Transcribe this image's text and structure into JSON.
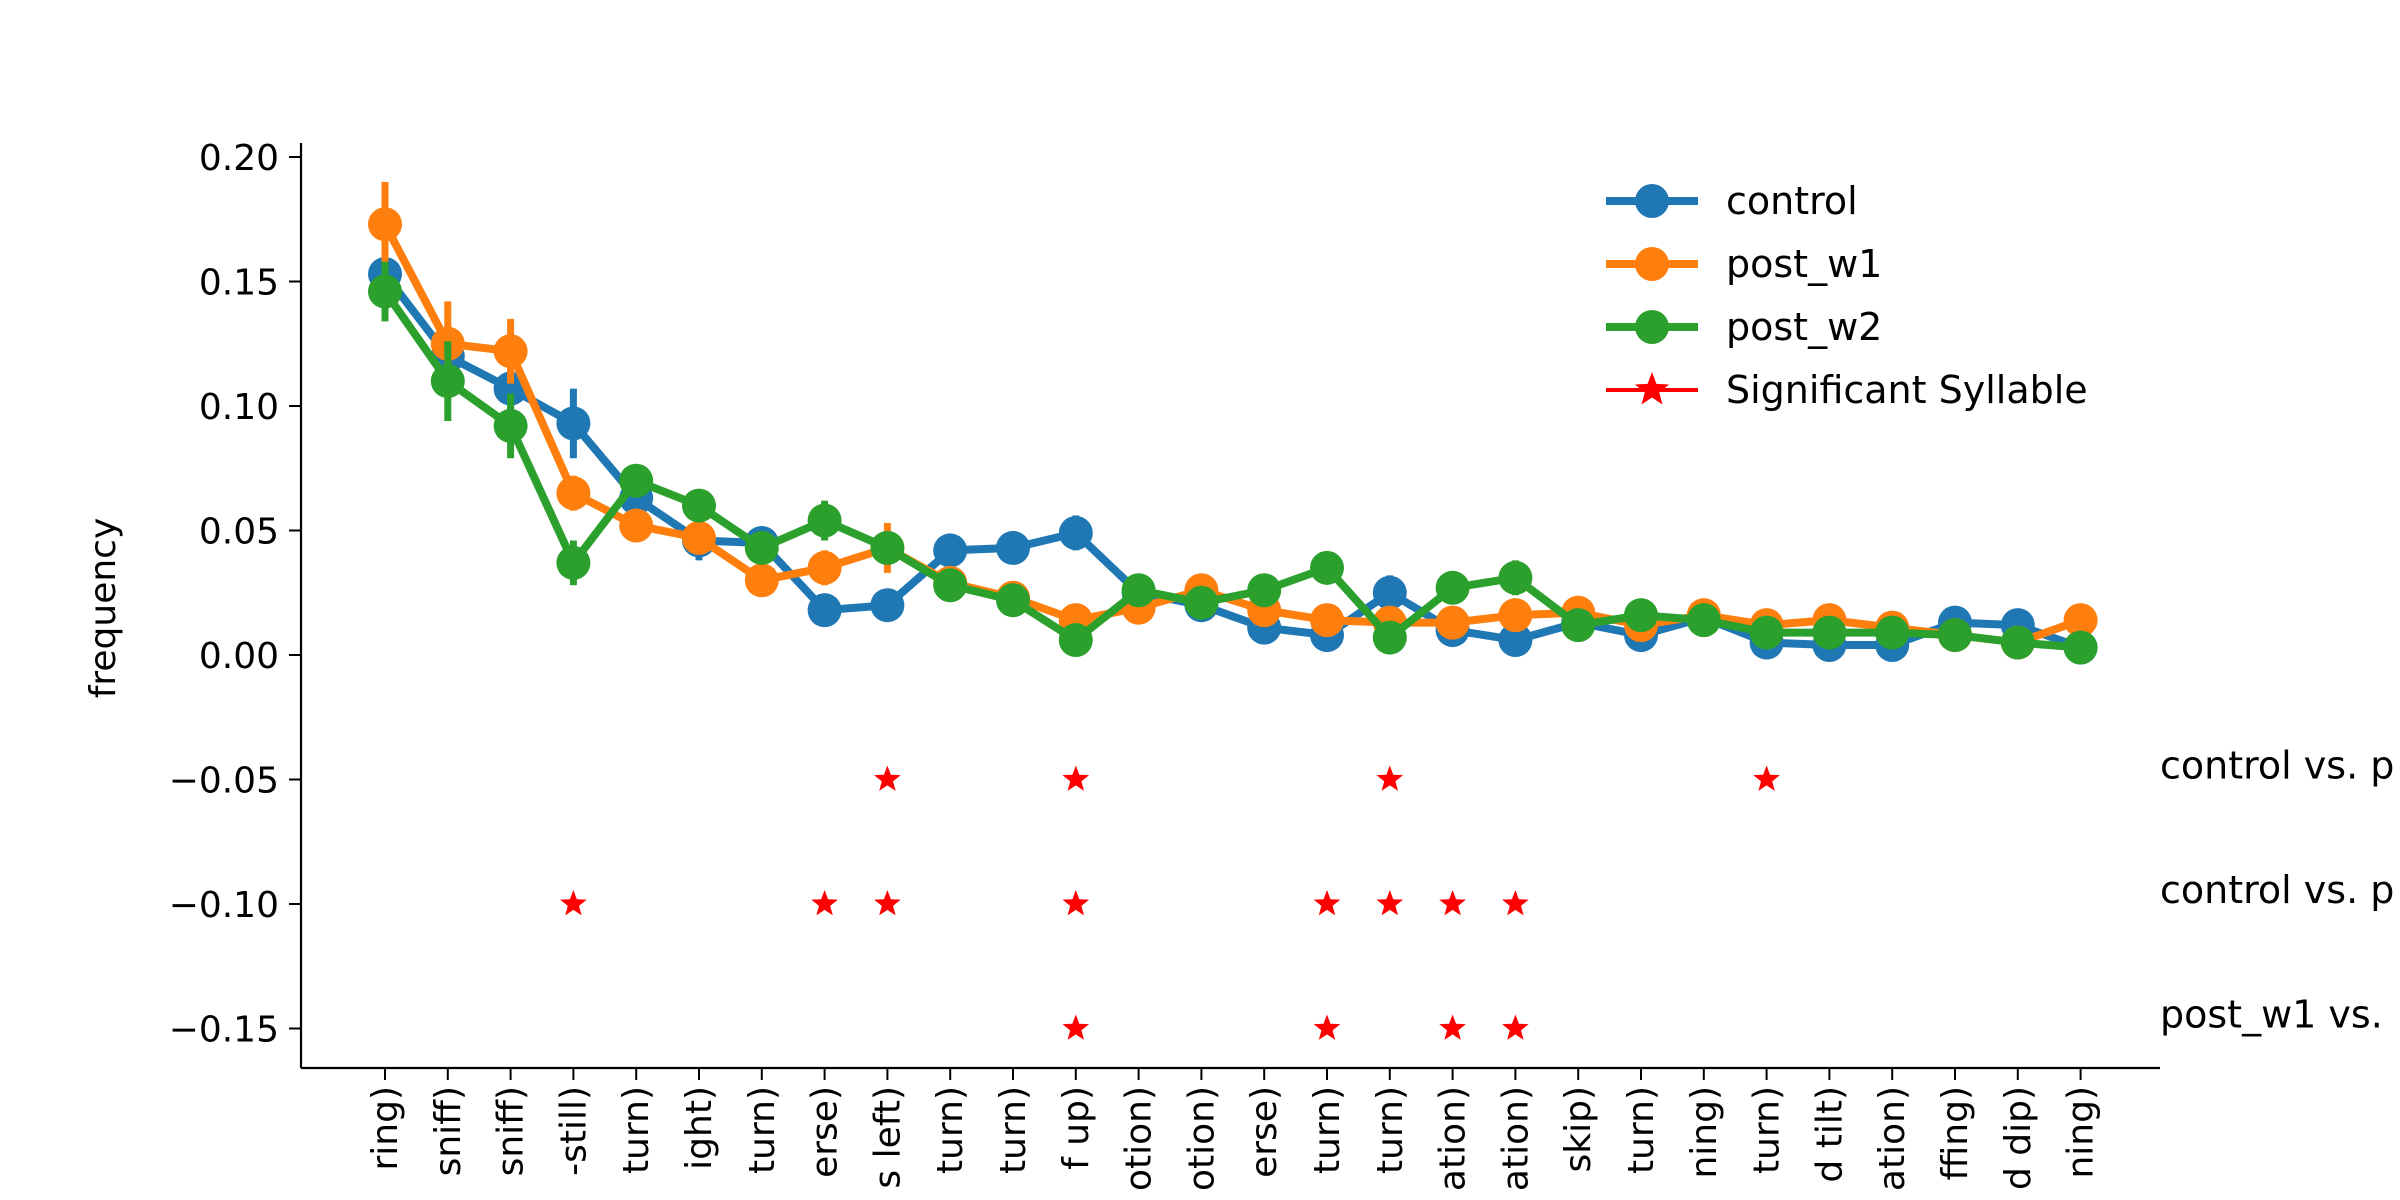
{
  "chart_data": {
    "type": "line",
    "title": "",
    "xlabel": "",
    "ylabel": "frequency",
    "ylim": [
      -0.165,
      0.205
    ],
    "yticks": [
      "0.20",
      "0.15",
      "0.10",
      "0.05",
      "0.00",
      "−0.05",
      "−0.10",
      "−0.15"
    ],
    "ytick_values": [
      0.2,
      0.15,
      0.1,
      0.05,
      0.0,
      -0.05,
      -0.1,
      -0.15
    ],
    "categories": [
      "ring)",
      "sniff)",
      "sniff)",
      "-still)",
      "turn)",
      "ight)",
      "turn)",
      "erse)",
      "s left)",
      "turn)",
      "turn)",
      "f up)",
      "otion)",
      "otion)",
      "erse)",
      "turn)",
      "turn)",
      "ation)",
      "ation)",
      "skip)",
      "turn)",
      "ning)",
      "turn)",
      "d tilt)",
      "ation)",
      "ffing)",
      "d dip)",
      "ning)"
    ],
    "legend_position": "upper-right",
    "series": [
      {
        "name": "control",
        "color": "#1f77b4",
        "values": [
          0.153,
          0.12,
          0.107,
          0.093,
          0.063,
          0.046,
          0.045,
          0.018,
          0.02,
          0.042,
          0.043,
          0.049,
          0.025,
          0.02,
          0.011,
          0.008,
          0.025,
          0.01,
          0.006,
          0.013,
          0.008,
          0.015,
          0.005,
          0.004,
          0.004,
          0.013,
          0.012,
          0.003
        ],
        "errors": [
          0.01,
          0.012,
          0.01,
          0.014,
          0.008,
          0.008,
          0.006,
          0.004,
          0.004,
          0.004,
          0.005,
          0.007,
          0.005,
          0.005,
          0.003,
          0.003,
          0.007,
          0.004,
          0.003,
          0.003,
          0.003,
          0.003,
          0.002,
          0.002,
          0.002,
          0.003,
          0.003,
          0.002
        ]
      },
      {
        "name": "post_w1",
        "color": "#ff7f0e",
        "values": [
          0.173,
          0.125,
          0.122,
          0.065,
          0.052,
          0.047,
          0.03,
          0.035,
          0.043,
          0.029,
          0.023,
          0.014,
          0.019,
          0.026,
          0.018,
          0.014,
          0.013,
          0.013,
          0.016,
          0.017,
          0.012,
          0.016,
          0.012,
          0.014,
          0.011,
          0.008,
          0.005,
          0.014
        ],
        "errors": [
          0.017,
          0.017,
          0.013,
          0.007,
          0.005,
          0.006,
          0.004,
          0.007,
          0.01,
          0.005,
          0.004,
          0.003,
          0.004,
          0.005,
          0.004,
          0.003,
          0.003,
          0.003,
          0.003,
          0.003,
          0.003,
          0.003,
          0.003,
          0.006,
          0.003,
          0.003,
          0.002,
          0.003
        ]
      },
      {
        "name": "post_w2",
        "color": "#2ca02c",
        "values": [
          0.146,
          0.11,
          0.092,
          0.037,
          0.07,
          0.06,
          0.043,
          0.054,
          0.043,
          0.028,
          0.022,
          0.006,
          0.026,
          0.021,
          0.026,
          0.035,
          0.007,
          0.027,
          0.031,
          0.012,
          0.016,
          0.014,
          0.009,
          0.009,
          0.009,
          0.008,
          0.005,
          0.003
        ],
        "errors": [
          0.012,
          0.016,
          0.013,
          0.009,
          0.006,
          0.006,
          0.006,
          0.008,
          0.006,
          0.006,
          0.005,
          0.003,
          0.005,
          0.004,
          0.004,
          0.005,
          0.003,
          0.005,
          0.007,
          0.003,
          0.003,
          0.003,
          0.002,
          0.002,
          0.002,
          0.002,
          0.002,
          0.002
        ]
      }
    ],
    "significance": {
      "name": "Significant Syllable",
      "color": "#ff0000",
      "rows": [
        {
          "label": "control vs. p",
          "y": -0.05,
          "indices": [
            8,
            11,
            16,
            22
          ]
        },
        {
          "label": "control vs. p",
          "y": -0.1,
          "indices": [
            3,
            7,
            8,
            11,
            15,
            16,
            17,
            18
          ]
        },
        {
          "label": "post_w1 vs.",
          "y": -0.15,
          "indices": [
            11,
            15,
            17,
            18
          ]
        }
      ]
    }
  }
}
